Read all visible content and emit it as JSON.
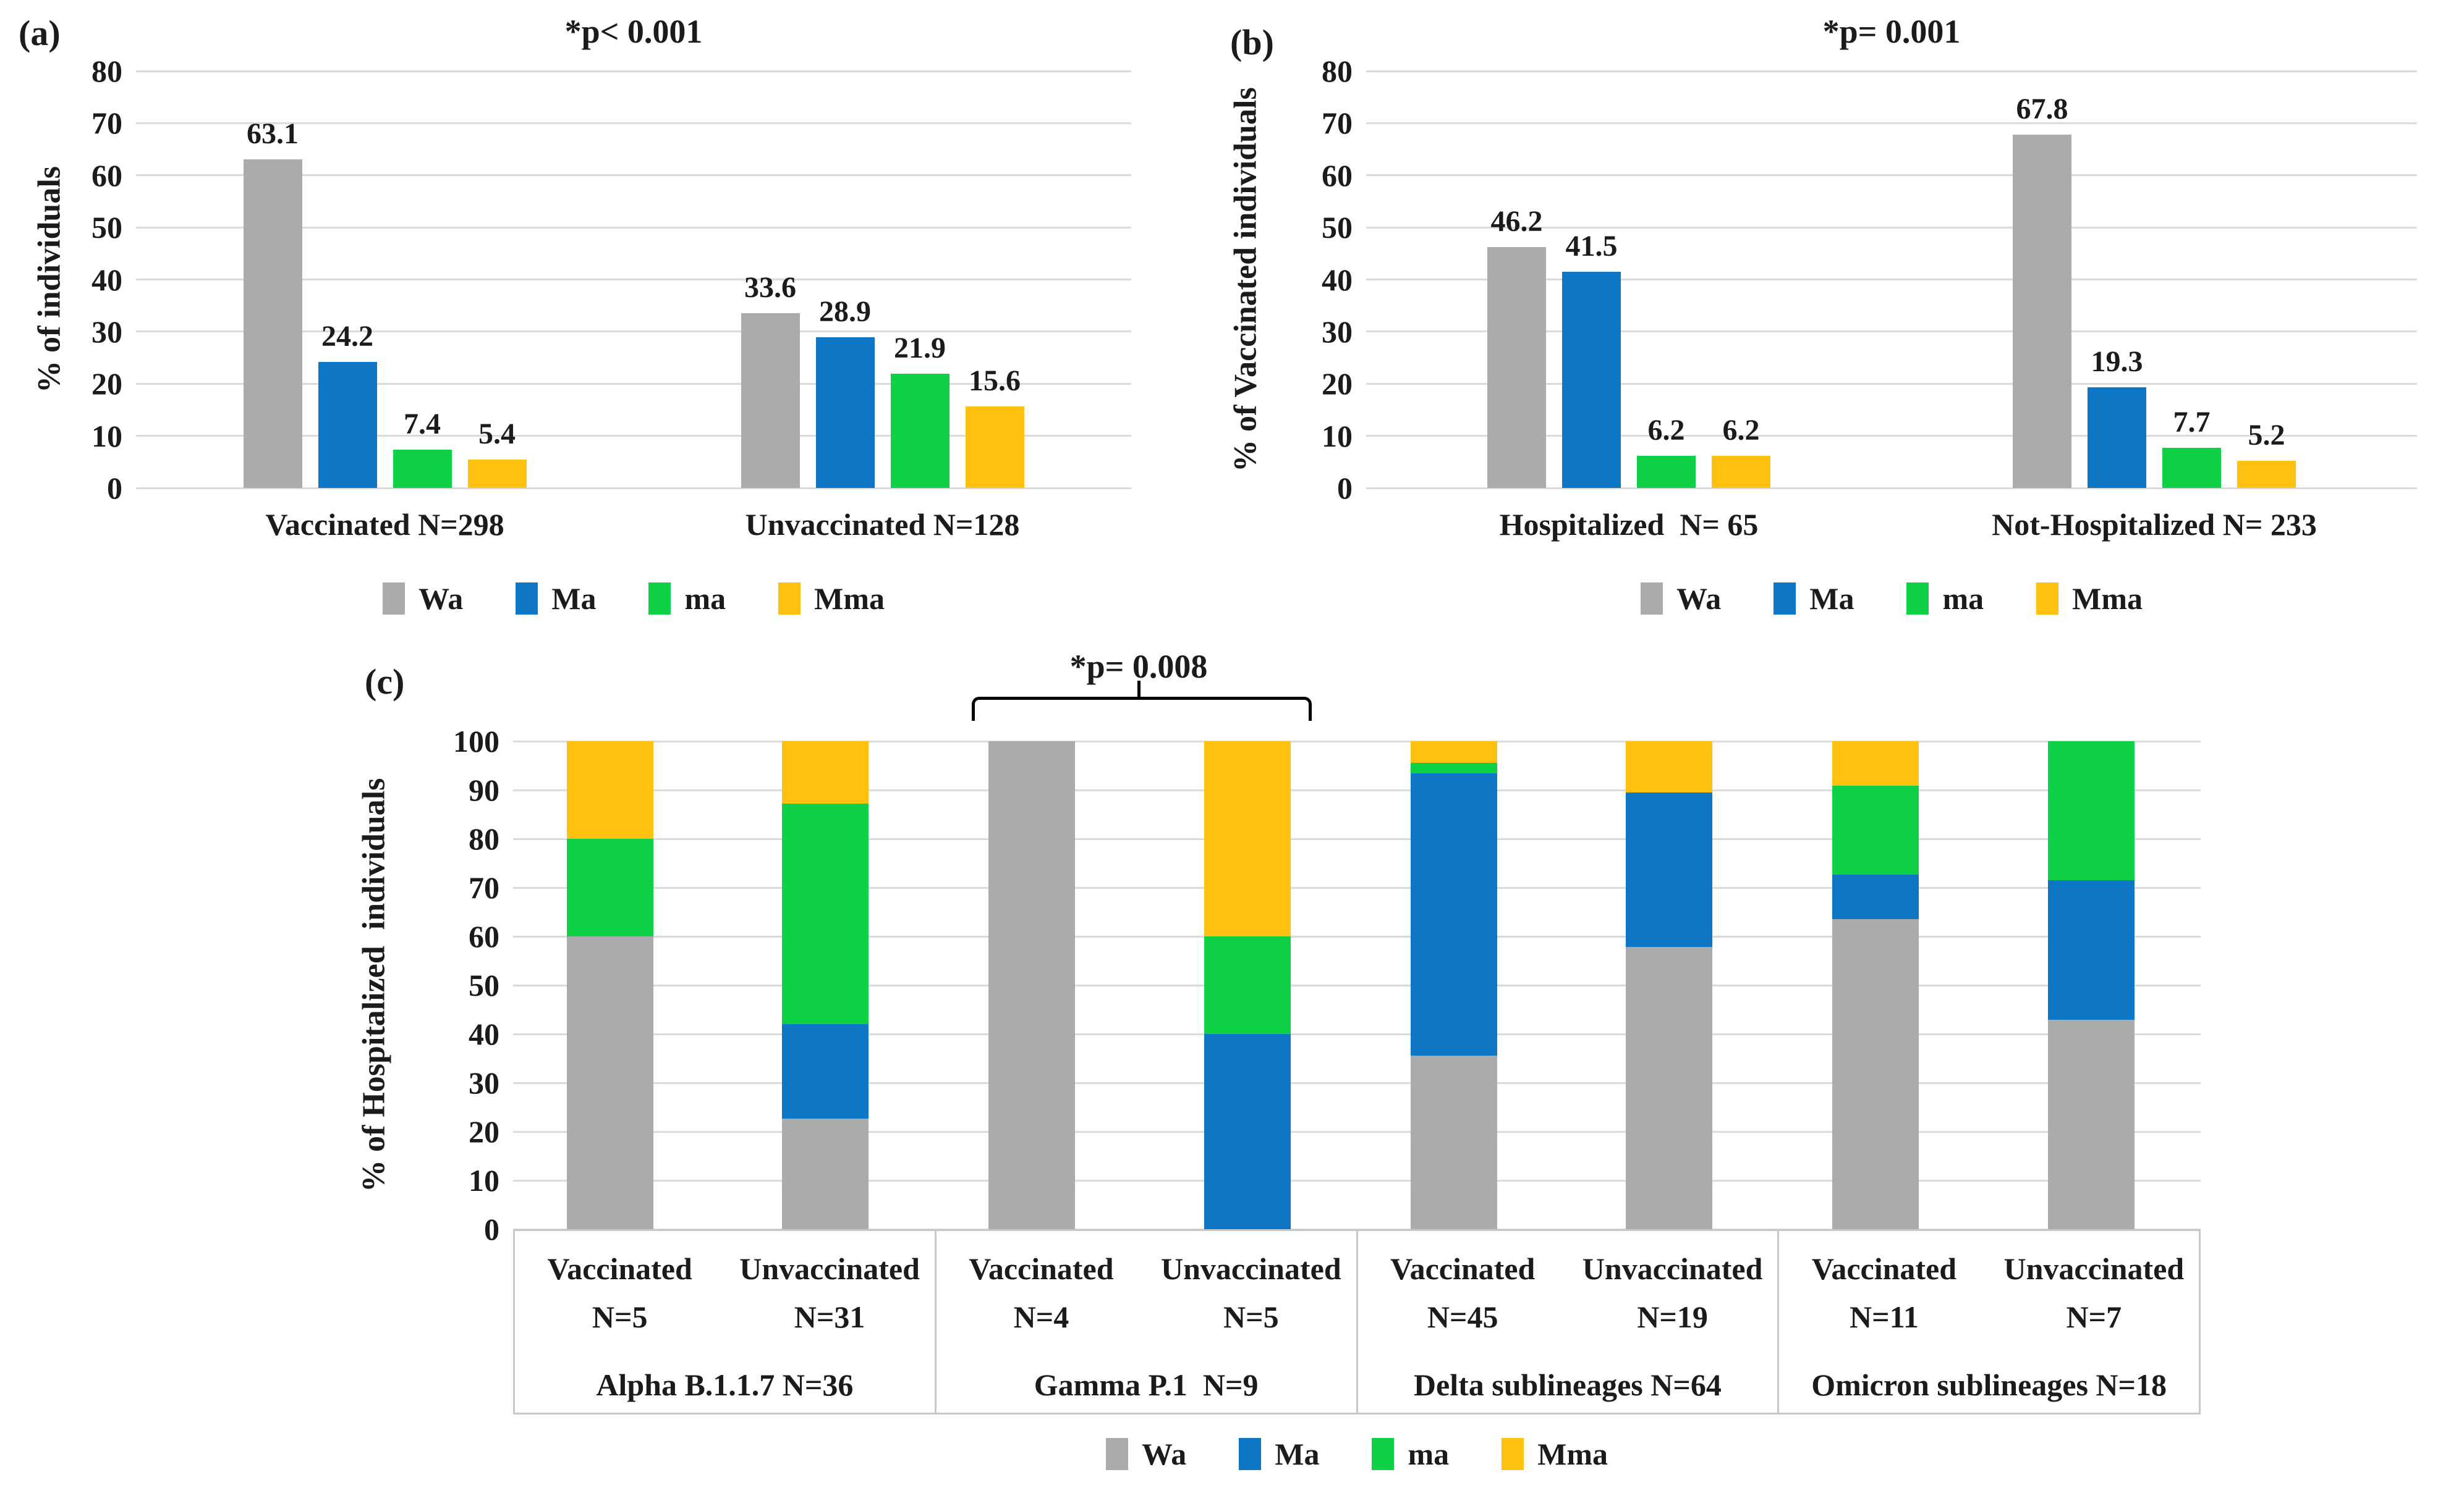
{
  "legend": {
    "items": [
      {
        "label": "Wa",
        "color": "#ABABAB"
      },
      {
        "label": "Ma",
        "color": "#0D76C5"
      },
      {
        "label": "ma",
        "color": "#0ED145"
      },
      {
        "label": "Mma",
        "color": "#FFC010"
      }
    ]
  },
  "colors": {
    "background": "#FFFFFF",
    "gridline": "#DBDBDB",
    "table_border": "#C9C9C9",
    "text": "#1B1B1B",
    "bracket": "#000000"
  },
  "chart_data": [
    {
      "id": "a",
      "type": "bar",
      "panel_label": "(a)",
      "title": "*p< 0.001",
      "ylabel": "% of individuals",
      "ylim": [
        0,
        80
      ],
      "yticks": [
        0,
        10,
        20,
        30,
        40,
        50,
        60,
        70,
        80
      ],
      "grid": true,
      "legend_position": "bottom",
      "categories": [
        "Vaccinated N=298",
        "Unvaccinated N=128"
      ],
      "series": [
        {
          "name": "Wa",
          "values": [
            63.1,
            33.6
          ]
        },
        {
          "name": "Ma",
          "values": [
            24.2,
            28.9
          ]
        },
        {
          "name": "ma",
          "values": [
            7.4,
            21.9
          ]
        },
        {
          "name": "Mma",
          "values": [
            5.4,
            15.6
          ]
        }
      ]
    },
    {
      "id": "b",
      "type": "bar",
      "panel_label": "(b)",
      "title": "*p= 0.001",
      "ylabel": "% of Vaccinated individuals",
      "ylim": [
        0,
        80
      ],
      "yticks": [
        0,
        10,
        20,
        30,
        40,
        50,
        60,
        70,
        80
      ],
      "grid": true,
      "legend_position": "bottom",
      "categories": [
        "Hospitalized  N= 65",
        "Not-Hospitalized N= 233"
      ],
      "series": [
        {
          "name": "Wa",
          "values": [
            46.2,
            67.8
          ]
        },
        {
          "name": "Ma",
          "values": [
            41.5,
            19.3
          ]
        },
        {
          "name": "ma",
          "values": [
            6.2,
            7.7
          ]
        },
        {
          "name": "Mma",
          "values": [
            6.2,
            5.2
          ]
        }
      ]
    },
    {
      "id": "c",
      "type": "stacked-bar",
      "panel_label": "(c)",
      "annotation": {
        "label": "*p= 0.008",
        "spans_group": "Gamma P.1  N=9"
      },
      "ylabel": "% of Hospitalized  individuals",
      "ylim": [
        0,
        100
      ],
      "yticks": [
        0,
        10,
        20,
        30,
        40,
        50,
        60,
        70,
        80,
        90,
        100
      ],
      "grid": true,
      "legend_position": "bottom",
      "stack_order": [
        "Wa",
        "Ma",
        "ma",
        "Mma"
      ],
      "groups": [
        {
          "label": "Alpha B.1.1.7 N=36",
          "bars": [
            {
              "head": "Vaccinated",
              "n": "N=5",
              "segments": {
                "Wa": 60,
                "Ma": 0,
                "ma": 20,
                "Mma": 20
              }
            },
            {
              "head": "Unvaccinated",
              "n": "N=31",
              "segments": {
                "Wa": 22.6,
                "Ma": 19.4,
                "ma": 45.2,
                "Mma": 12.9
              }
            }
          ]
        },
        {
          "label": "Gamma P.1  N=9",
          "bars": [
            {
              "head": "Vaccinated",
              "n": "N=4",
              "segments": {
                "Wa": 100,
                "Ma": 0,
                "ma": 0,
                "Mma": 0
              }
            },
            {
              "head": "Unvaccinated",
              "n": "N=5",
              "segments": {
                "Wa": 0,
                "Ma": 40,
                "ma": 20,
                "Mma": 40
              }
            }
          ]
        },
        {
          "label": "Delta sublineages N=64",
          "bars": [
            {
              "head": "Vaccinated",
              "n": "N=45",
              "segments": {
                "Wa": 35.6,
                "Ma": 57.8,
                "ma": 2.2,
                "Mma": 4.4
              }
            },
            {
              "head": "Unvaccinated",
              "n": "N=19",
              "segments": {
                "Wa": 57.9,
                "Ma": 31.6,
                "ma": 0,
                "Mma": 10.5
              }
            }
          ]
        },
        {
          "label": "Omicron sublineages N=18",
          "bars": [
            {
              "head": "Vaccinated",
              "n": "N=11",
              "segments": {
                "Wa": 63.6,
                "Ma": 9.1,
                "ma": 18.2,
                "Mma": 9.1
              }
            },
            {
              "head": "Unvaccinated",
              "n": "N=7",
              "segments": {
                "Wa": 42.9,
                "Ma": 28.6,
                "ma": 28.6,
                "Mma": 0
              }
            }
          ]
        }
      ]
    }
  ]
}
